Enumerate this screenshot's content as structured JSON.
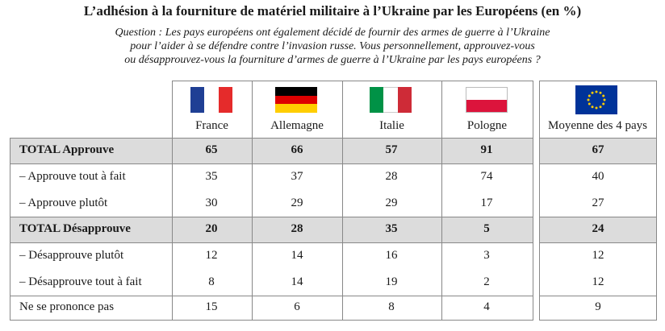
{
  "title": "L’adhésion à la fourniture de matériel militaire à l’Ukraine par les Européens  (en %)",
  "question": [
    "Question : Les pays européens ont également décidé de fournir des armes de guerre à l’Ukraine",
    "pour l’aider à se défendre  contre l’invasion russe. Vous personnellement, approuvez-vous",
    "ou désapprouvez-vous la fourniture d’armes de guerre à l’Ukraine par les pays européens ?"
  ],
  "columns": [
    "France",
    "Allemagne",
    "Italie",
    "Pologne",
    "Moyenne des 4 pays"
  ],
  "flags": {
    "france": [
      "#1f3f94",
      "#ffffff",
      "#e52b2b"
    ],
    "germany": [
      "#000000",
      "#dd0000",
      "#ffce00"
    ],
    "italy": [
      "#009246",
      "#ffffff",
      "#ce2b37"
    ],
    "poland": [
      "#ffffff",
      "#dc143c"
    ],
    "eu": "#003399",
    "eu_star": "#ffcc00"
  },
  "rows": [
    {
      "label": "TOTAL Approuve",
      "values": [
        "65",
        "66",
        "57",
        "91",
        "67"
      ],
      "bold": true
    },
    {
      "label": "– Approuve tout à fait",
      "values": [
        "35",
        "37",
        "28",
        "74",
        "40"
      ],
      "bold": false
    },
    {
      "label": "– Approuve plutôt",
      "values": [
        "30",
        "29",
        "29",
        "17",
        "27"
      ],
      "bold": false
    },
    {
      "label": "TOTAL Désapprouve",
      "values": [
        "20",
        "28",
        "35",
        "5",
        "24"
      ],
      "bold": true
    },
    {
      "label": "– Désapprouve plutôt",
      "values": [
        "12",
        "14",
        "16",
        "3",
        "12"
      ],
      "bold": false
    },
    {
      "label": "– Désapprouve tout à fait",
      "values": [
        "8",
        "14",
        "19",
        "2",
        "12"
      ],
      "bold": false
    },
    {
      "label": "Ne se prononce pas",
      "values": [
        "15",
        "6",
        "8",
        "4",
        "9"
      ],
      "bold": false
    }
  ]
}
